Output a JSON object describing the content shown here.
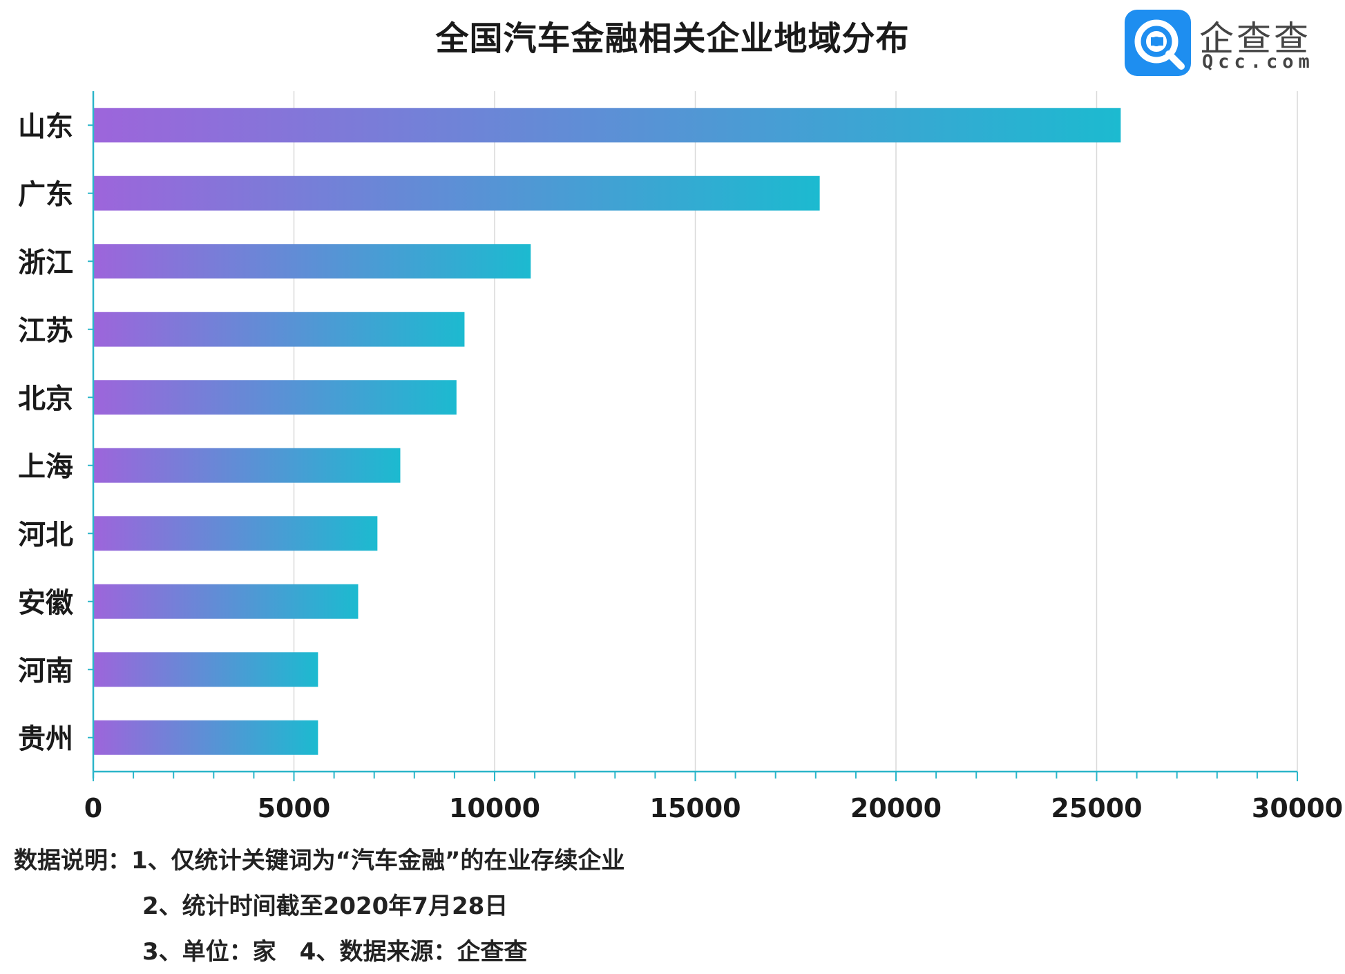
{
  "chart_data": {
    "type": "bar",
    "orientation": "horizontal",
    "title": "全国汽车金融相关企业地域分布",
    "categories": [
      "山东",
      "广东",
      "浙江",
      "江苏",
      "北京",
      "上海",
      "河北",
      "安徽",
      "河南",
      "贵州"
    ],
    "values": [
      25600,
      18100,
      10900,
      9250,
      9050,
      7650,
      7080,
      6600,
      5600,
      5600
    ],
    "xlim": [
      0,
      30000
    ],
    "xticks": [
      0,
      5000,
      10000,
      15000,
      20000,
      25000,
      30000
    ],
    "minor_tick_step": 1000,
    "grid": "vertical",
    "legend": "none",
    "colors": {
      "bar_start": "#9d65db",
      "bar_end": "#1cbad0",
      "axis": "#2bb5c9",
      "grid": "#d9d9d9"
    }
  },
  "logo": {
    "name": "企查查",
    "domain": "Qcc.com",
    "icon": "qcc-magnifier-icon",
    "color": "#1e8ef0"
  },
  "notes": [
    "数据说明：1、仅统计关键词为“汽车金融”的在业存续企业",
    "2、统计时间截至2020年7月28日",
    "3、单位：家　4、数据来源：企查查"
  ]
}
